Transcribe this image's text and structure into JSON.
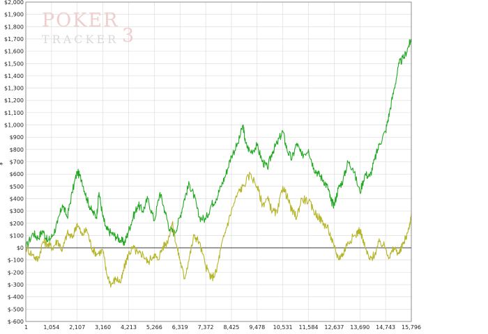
{
  "watermark": {
    "line1": "POKER",
    "line2": "TRACKER",
    "digit": "3"
  },
  "colors": {
    "net_won": "#22a822",
    "non_showdown": "#b5b52a",
    "zero_line": "#3a3a3a",
    "grid": "#d8d8d8"
  },
  "chart_data": {
    "type": "line",
    "title": "",
    "xlabel": "",
    "ylabel": "$",
    "xlim": [
      1,
      15796
    ],
    "ylim": [
      -600,
      2000
    ],
    "grid": true,
    "y_ticks": [
      -600,
      -500,
      -400,
      -300,
      -200,
      -100,
      0,
      100,
      200,
      300,
      400,
      500,
      600,
      700,
      800,
      900,
      1000,
      1100,
      1200,
      1300,
      1400,
      1500,
      1600,
      1700,
      1800,
      1900,
      2000
    ],
    "y_tick_labels": [
      "$-600",
      "$-500",
      "$-400",
      "$-300",
      "$-200",
      "$-100",
      "$0",
      "$100",
      "$200",
      "$300",
      "$400",
      "$500",
      "$600",
      "$700",
      "$800",
      "$900",
      "$1,000",
      "$1,100",
      "$1,200",
      "$1,300",
      "$1,400",
      "$1,500",
      "$1,600",
      "$1,700",
      "$1,800",
      "$1,900",
      "$2,000"
    ],
    "x_ticks": [
      1,
      1054,
      2107,
      3160,
      4213,
      5266,
      6319,
      7372,
      8425,
      9478,
      10531,
      11584,
      12637,
      13690,
      14743,
      15796
    ],
    "x_tick_labels": [
      "1",
      "1,054",
      "2,107",
      "3,160",
      "4,213",
      "5,266",
      "6,319",
      "7,372",
      "8,425",
      "9,478",
      "10,531",
      "11,584",
      "12,637",
      "13,690",
      "14,743",
      "15,796"
    ],
    "series": [
      {
        "key": "net_won",
        "x": [
          1,
          300,
          500,
          700,
          900,
          1100,
          1300,
          1500,
          1700,
          1900,
          2107,
          2300,
          2500,
          2700,
          2900,
          3000,
          3160,
          3300,
          3500,
          3700,
          3900,
          4050,
          4213,
          4400,
          4600,
          4800,
          5000,
          5266,
          5500,
          5700,
          5900,
          6100,
          6319,
          6500,
          6700,
          6900,
          7100,
          7372,
          7600,
          7800,
          8000,
          8200,
          8425,
          8700,
          8900,
          9000,
          9200,
          9478,
          9700,
          9900,
          10100,
          10300,
          10531,
          10700,
          10900,
          11100,
          11300,
          11584,
          11800,
          12000,
          12200,
          12400,
          12500,
          12637,
          12800,
          13000,
          13200,
          13400,
          13690,
          13900,
          14100,
          14300,
          14500,
          14743,
          14900,
          15100,
          15300,
          15500,
          15700,
          15796
        ],
        "y": [
          0,
          120,
          80,
          140,
          50,
          100,
          200,
          350,
          250,
          450,
          620,
          550,
          400,
          300,
          250,
          450,
          250,
          150,
          120,
          90,
          60,
          40,
          140,
          250,
          350,
          300,
          400,
          220,
          450,
          300,
          150,
          120,
          250,
          400,
          520,
          420,
          250,
          230,
          350,
          400,
          500,
          600,
          750,
          850,
          1000,
          850,
          780,
          830,
          700,
          650,
          780,
          850,
          950,
          800,
          720,
          850,
          750,
          800,
          650,
          600,
          550,
          480,
          380,
          350,
          480,
          550,
          700,
          650,
          450,
          600,
          580,
          720,
          850,
          950,
          1100,
          1300,
          1500,
          1550,
          1650,
          1700
        ]
      },
      {
        "key": "non_showdown",
        "x": [
          1,
          300,
          500,
          700,
          900,
          1100,
          1300,
          1500,
          1700,
          1900,
          2107,
          2300,
          2500,
          2700,
          2900,
          3160,
          3300,
          3500,
          3700,
          3900,
          4050,
          4213,
          4400,
          4600,
          4800,
          5000,
          5266,
          5400,
          5600,
          5800,
          6000,
          6200,
          6319,
          6500,
          6700,
          6900,
          7100,
          7372,
          7600,
          7800,
          8000,
          8200,
          8425,
          8700,
          8900,
          9200,
          9478,
          9700,
          9900,
          10100,
          10300,
          10531,
          10700,
          10900,
          11100,
          11300,
          11584,
          11800,
          12000,
          12200,
          12400,
          12637,
          12800,
          13000,
          13200,
          13500,
          13690,
          13900,
          14100,
          14300,
          14500,
          14743,
          14900,
          15100,
          15300,
          15500,
          15700,
          15796
        ],
        "y": [
          0,
          -60,
          -100,
          50,
          30,
          0,
          60,
          -20,
          120,
          80,
          200,
          100,
          150,
          0,
          -50,
          -20,
          -200,
          -300,
          -250,
          -280,
          -150,
          -50,
          0,
          -50,
          -50,
          -120,
          -50,
          -100,
          0,
          50,
          200,
          0,
          -100,
          -250,
          -80,
          100,
          50,
          -150,
          -250,
          -200,
          0,
          150,
          300,
          450,
          500,
          600,
          500,
          350,
          400,
          300,
          280,
          500,
          420,
          300,
          250,
          400,
          380,
          300,
          250,
          200,
          150,
          0,
          -80,
          -50,
          50,
          100,
          150,
          0,
          -100,
          -50,
          50,
          0,
          -80,
          0,
          -50,
          50,
          150,
          280
        ]
      }
    ]
  }
}
